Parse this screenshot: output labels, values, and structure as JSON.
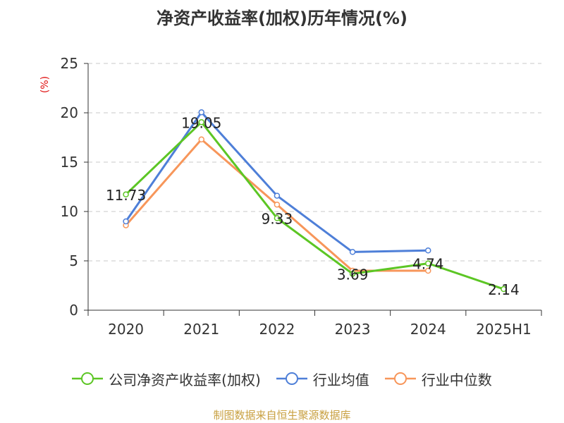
{
  "chart_data": {
    "type": "line",
    "title": "净资产收益率(加权)历年情况(%)",
    "ylabel": "(%)",
    "categories": [
      "2020",
      "2021",
      "2022",
      "2023",
      "2024",
      "2025H1"
    ],
    "ylim": [
      0,
      25
    ],
    "yticks": [
      0,
      5,
      10,
      15,
      20,
      25
    ],
    "grid": true,
    "legend_position": "bottom",
    "series": [
      {
        "name": "公司净资产收益率(加权)",
        "color": "#5cc624",
        "values": [
          11.73,
          19.05,
          9.33,
          3.69,
          4.74,
          2.14
        ],
        "labels": true
      },
      {
        "name": "行业均值",
        "color": "#4e7fd8",
        "values": [
          9.0,
          20.05,
          11.6,
          5.9,
          6.05,
          null
        ],
        "labels": false
      },
      {
        "name": "行业中位数",
        "color": "#f7965a",
        "values": [
          8.6,
          17.3,
          10.7,
          4.0,
          4.0,
          null
        ],
        "labels": false
      }
    ]
  },
  "source": "制图数据来自恒生聚源数据库"
}
